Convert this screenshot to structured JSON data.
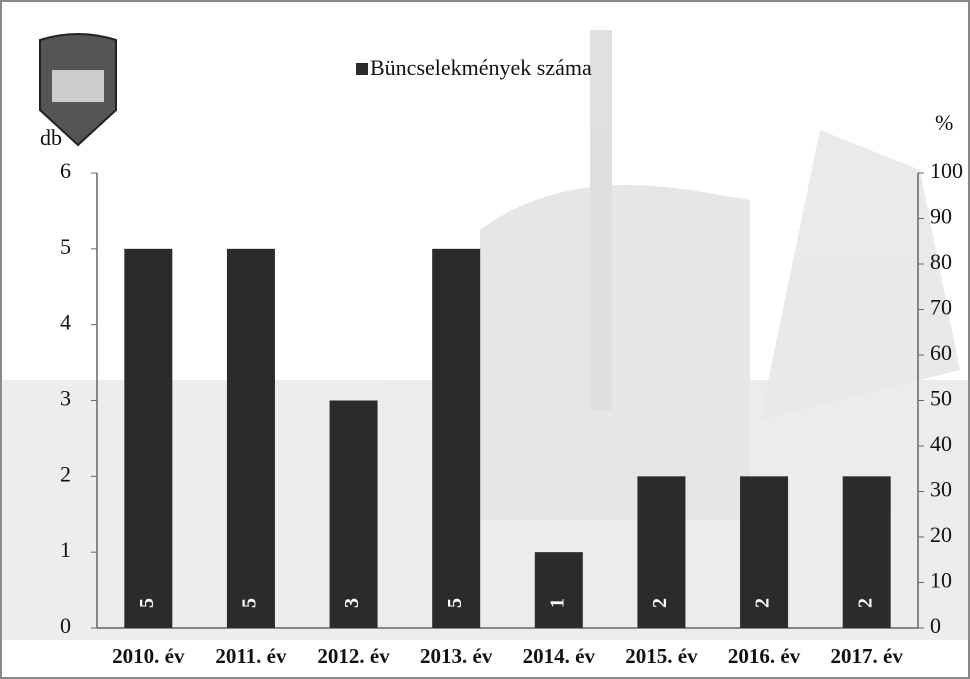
{
  "chart_data": {
    "type": "bar",
    "legend": "Büncselekmények száma",
    "y_label": "db",
    "y2_label": "%",
    "categories": [
      "2010. év",
      "2011. év",
      "2012. év",
      "2013. év",
      "2014. év",
      "2015. év",
      "2016. év",
      "2017. év"
    ],
    "series": [
      {
        "name": "Büncselekmények száma",
        "color": "#2b2b2b",
        "values": [
          5,
          5,
          3,
          5,
          1,
          2,
          2,
          2
        ]
      }
    ],
    "ylim": [
      0,
      6
    ],
    "yticks": [
      0,
      1,
      2,
      3,
      4,
      5,
      6
    ],
    "y2lim": [
      0,
      100
    ],
    "y2ticks": [
      0,
      10,
      20,
      30,
      40,
      50,
      60,
      70,
      80,
      90,
      100
    ],
    "grid": false,
    "legend_position": "top"
  }
}
